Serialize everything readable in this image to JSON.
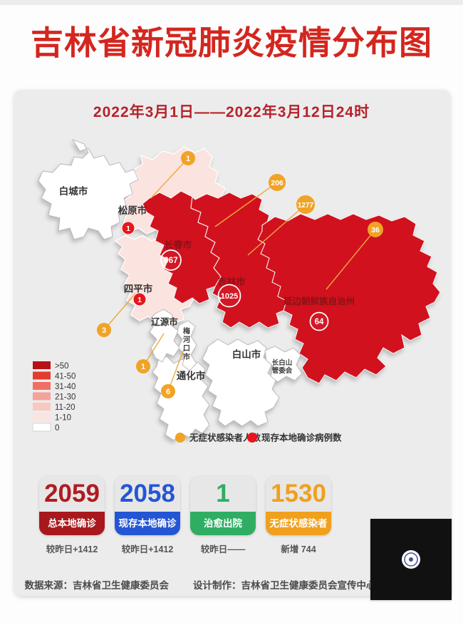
{
  "title": "吉林省新冠肺炎疫情分布图",
  "date_range": "2022年3月1日——2022年3月12日24时",
  "colors": {
    "title_red": "#d3261f",
    "date_red": "#b5222b",
    "region_red": "#d2111e",
    "region_pink": "#fbe3df",
    "region_white": "#ffffff",
    "badge_orange": "#f0a325",
    "badge_red": "#e8151d",
    "stat_red": "#a8181d",
    "stat_blue": "#2456d4",
    "stat_green": "#2fae63",
    "stat_orange": "#f0a01c"
  },
  "map": {
    "regions": [
      {
        "name": "白城市",
        "color": "#ffffff"
      },
      {
        "name": "松原市",
        "color": "#fbe3df",
        "confirmed": "1",
        "asymptomatic": "1"
      },
      {
        "name": "长春市",
        "color": "#d2111e",
        "confirmed": "967",
        "asymptomatic": "206"
      },
      {
        "name": "四平市",
        "color": "#fbe3df",
        "confirmed": "1",
        "asymptomatic": "3"
      },
      {
        "name": "吉林市",
        "color": "#d2111e",
        "confirmed": "1025",
        "asymptomatic": "1277"
      },
      {
        "name": "延边朝鲜族自治州",
        "color": "#d2111e",
        "confirmed": "64",
        "asymptomatic": "36"
      },
      {
        "name": "辽源市",
        "color": "#ffffff",
        "asymptomatic": "1"
      },
      {
        "name": "梅河口市",
        "color": "#ffffff",
        "asymptomatic": "6"
      },
      {
        "name": "通化市",
        "color": "#ffffff"
      },
      {
        "name": "白山市",
        "color": "#ffffff"
      },
      {
        "name": "长白山管委会",
        "name_lines": [
          "长白山",
          "管委会"
        ],
        "color": "#ffffff"
      }
    ],
    "legend": [
      {
        "label": ">50",
        "color": "#b90f17"
      },
      {
        "label": "41-50",
        "color": "#e23c30"
      },
      {
        "label": "31-40",
        "color": "#ee7065"
      },
      {
        "label": "21-30",
        "color": "#f4a29a"
      },
      {
        "label": "11-20",
        "color": "#f8c9c1"
      },
      {
        "label": "1-10",
        "color": "#fbe3df"
      },
      {
        "label": "0",
        "color": "#ffffff"
      }
    ],
    "marker_legend": [
      {
        "label": "无症状感染者人数",
        "color": "#f0a325"
      },
      {
        "label": "现存本地确诊病例数",
        "color": "#e8151d"
      }
    ]
  },
  "stats": [
    {
      "value": "2059",
      "label": "总本地确诊",
      "sub": "较昨日+1412"
    },
    {
      "value": "2058",
      "label": "现存本地确诊",
      "sub": "较昨日+1412"
    },
    {
      "value": "1",
      "label": "治愈出院",
      "sub": "较昨日——"
    },
    {
      "value": "1530",
      "label": "无症状感染者",
      "sub": "新增 744"
    }
  ],
  "footer": {
    "source": "数据来源：吉林省卫生健康委员会",
    "credit": "设计制作：吉林省卫生健康委员会宣传中心"
  }
}
